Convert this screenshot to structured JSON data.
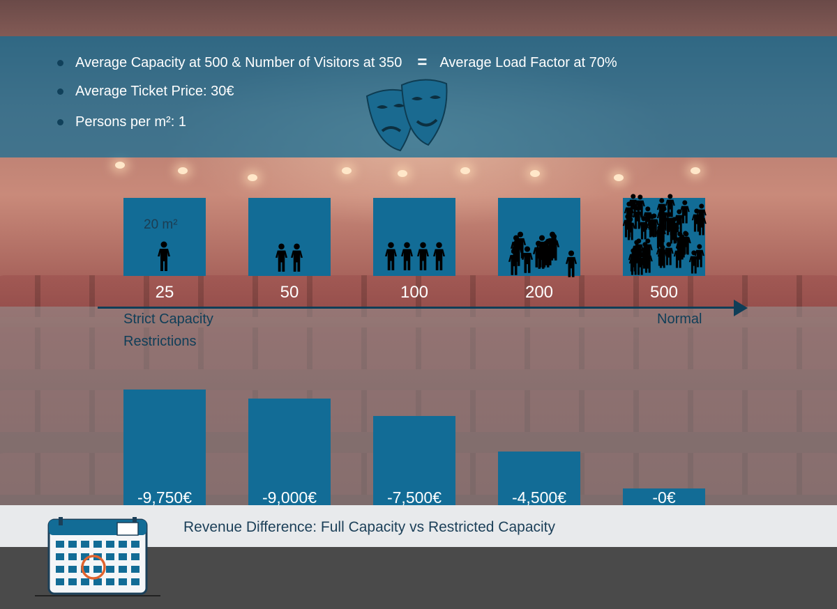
{
  "info": {
    "capacity_text": "Average Capacity at 500 & Number of Visitors at 350",
    "equals_sign": "=",
    "load_factor_text": "Average Load Factor at 70%",
    "ticket_price_text": "Average Ticket Price: 30€",
    "persons_per_m2_text": "Persons per m²: 1"
  },
  "colors": {
    "bar": "#126c96",
    "axis": "#0f3e58",
    "band": "#116e96",
    "caption_text": "#1b3f58"
  },
  "chart_data": {
    "type": "bar",
    "categories": [
      "25",
      "50",
      "100",
      "200",
      "500"
    ],
    "series": [
      {
        "values": [
          -9750,
          -9000,
          -7500,
          -4500,
          0
        ]
      }
    ],
    "value_labels": [
      "-9,750€",
      "-9,000€",
      "-7,500€",
      "-4,500€",
      "-0€"
    ],
    "area_label": "20 m²",
    "axis_left_label": "Strict Capacity Restrictions",
    "axis_right_label": "Normal",
    "caption": "Revenue Difference: Full Capacity vs Restricted Capacity",
    "people_icons": [
      1,
      2,
      4,
      13,
      46
    ],
    "ylim": [
      -10500,
      0
    ]
  }
}
